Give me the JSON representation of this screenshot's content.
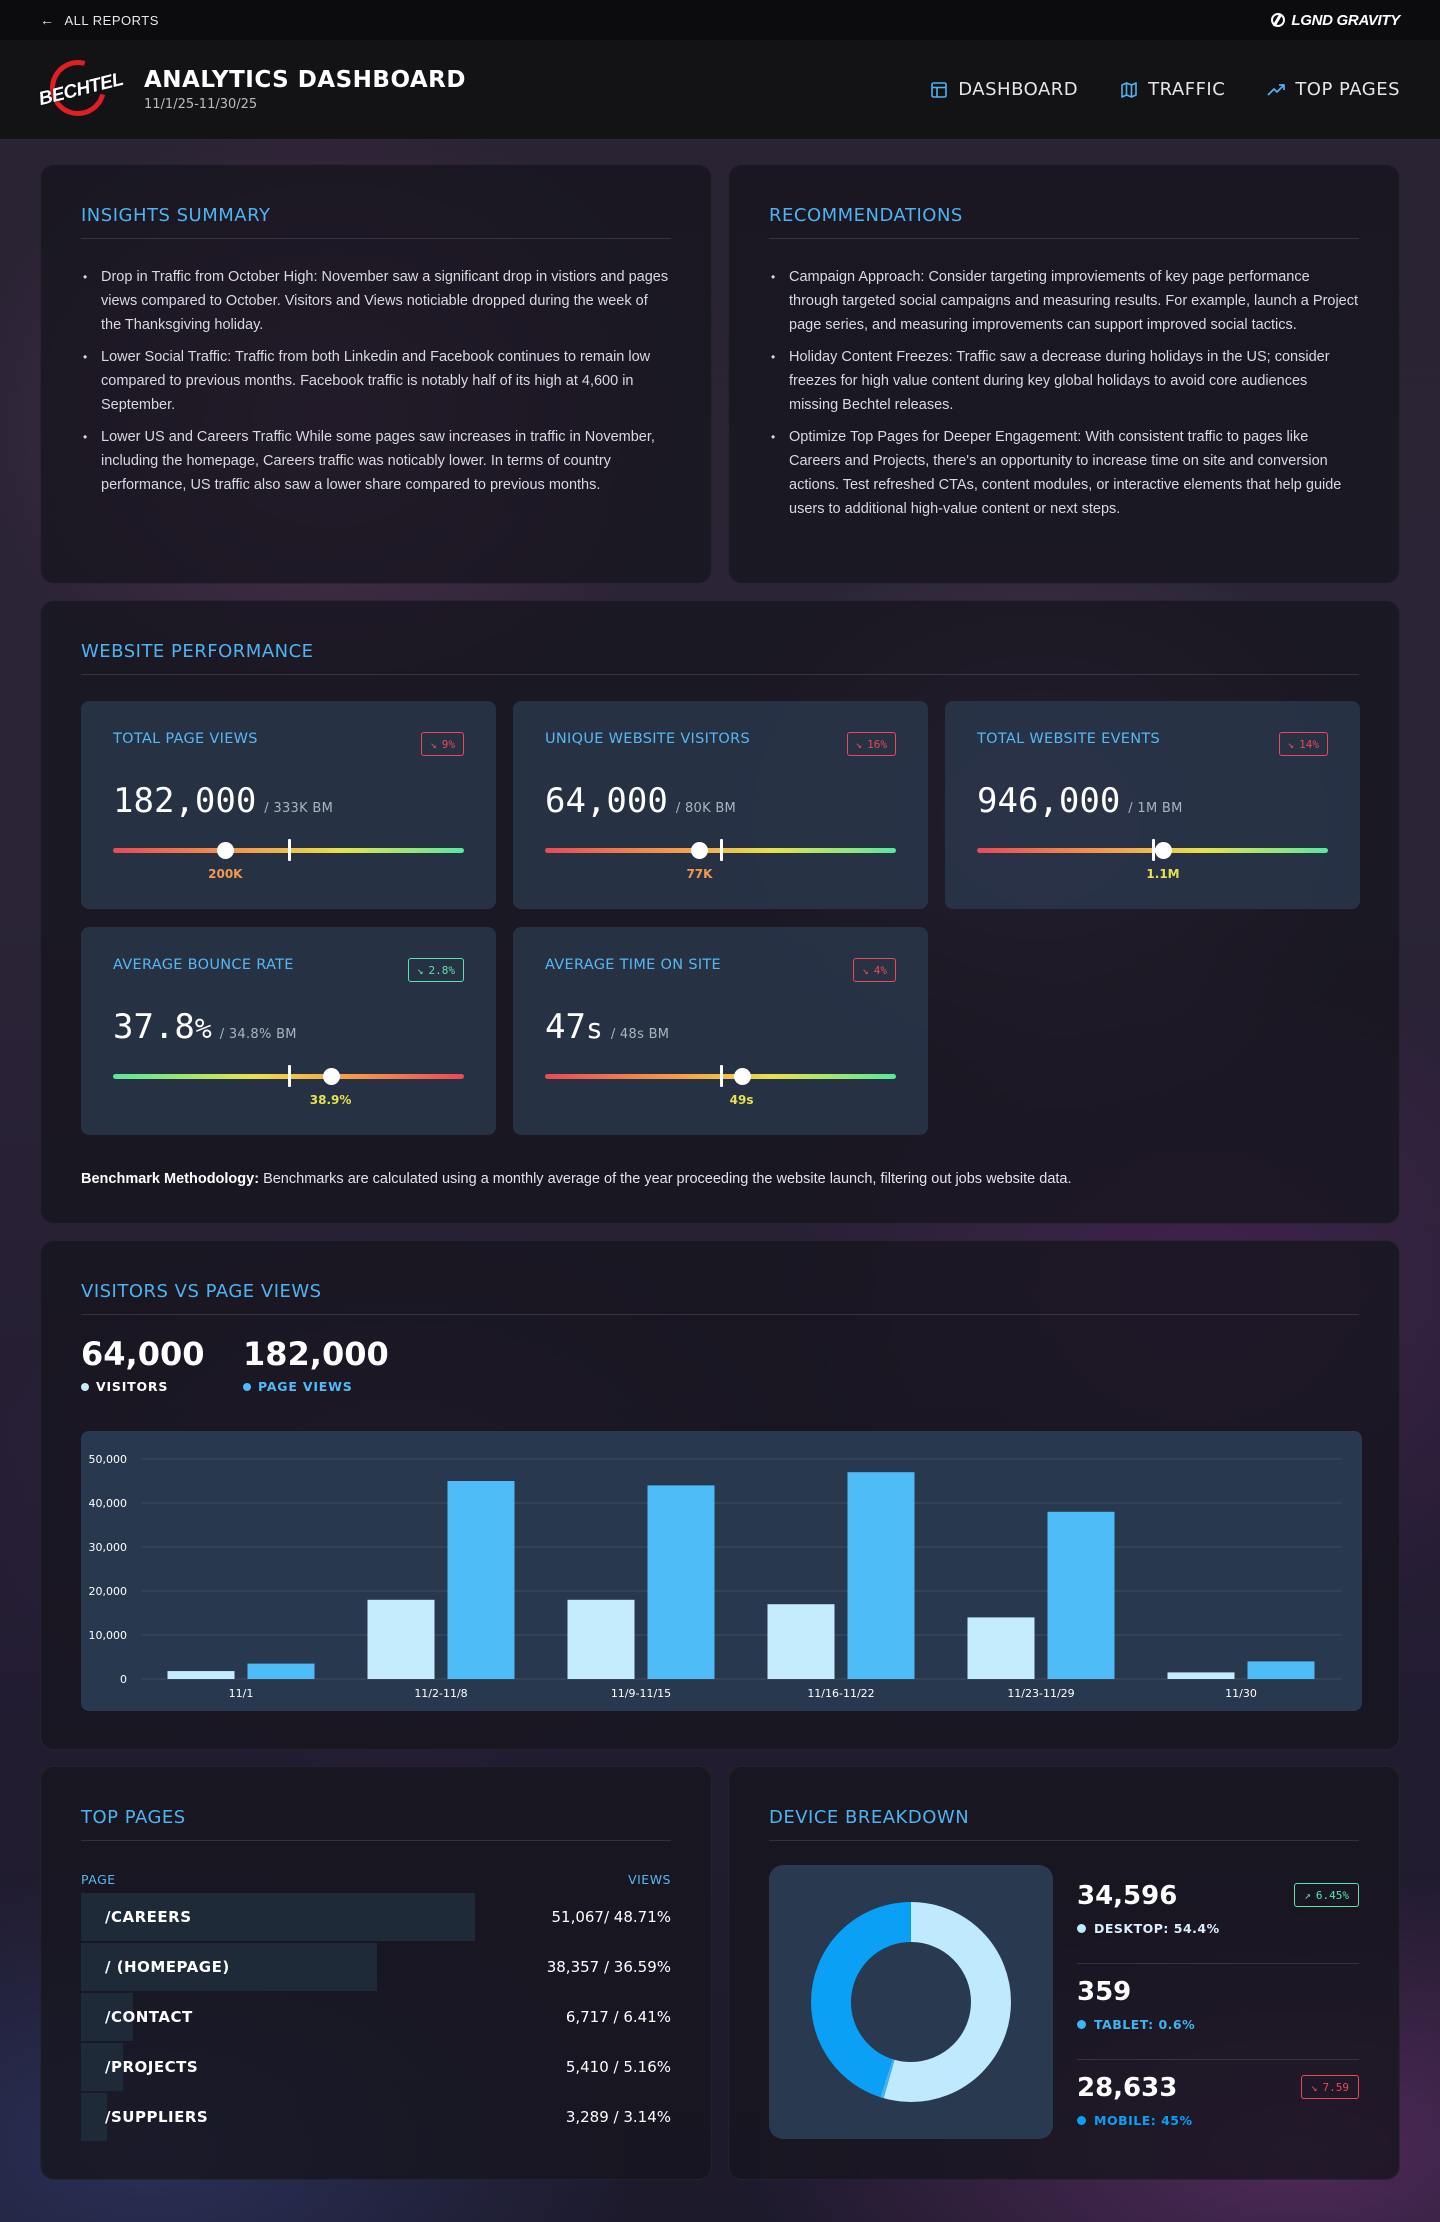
{
  "topbar": {
    "back_label": "ALL REPORTS",
    "brand": "LGND GRAVITY"
  },
  "header": {
    "logo_text": "BECHTEL",
    "title": "ANALYTICS DASHBOARD",
    "date_range": "11/1/25-11/30/25",
    "nav": [
      {
        "label": "DASHBOARD",
        "icon": "layout-icon"
      },
      {
        "label": "TRAFFIC",
        "icon": "map-icon"
      },
      {
        "label": "TOP PAGES",
        "icon": "trending-up-icon"
      }
    ]
  },
  "insights": {
    "title": "INSIGHTS SUMMARY",
    "items": [
      "Drop in Traffic from October High: November saw a significant drop in vistiors and pages views compared to October. Visitors and Views noticiable dropped during the week of the Thanksgiving holiday.",
      "Lower Social Traffic: Traffic from both Linkedin and Facebook continues to remain low compared to previous months. Facebook traffic is notably half of its high at 4,600 in September.",
      "Lower US and Careers Traffic While some pages saw increases in traffic in November, including the homepage, Careers traffic was noticably lower. In terms of country performance, US traffic also saw a lower share compared to previous months."
    ]
  },
  "recommendations": {
    "title": "RECOMMENDATIONS",
    "items": [
      "Campaign Approach: Consider targeting improviements of key page performance through targeted social campaigns and measuring results. For example, launch a Project page series, and measuring improvements can support improved social tactics.",
      "Holiday Content Freezes: Traffic saw a decrease during holidays in the US; consider freezes for high value content during key global holidays to avoid core audiences missing Bechtel releases.",
      "Optimize Top Pages for Deeper Engagement: With consistent traffic to pages like Careers and Projects, there's an opportunity to increase time on site and conversion actions. Test refreshed CTAs, content modules, or interactive elements that help guide users to additional high-value content or next steps."
    ]
  },
  "performance": {
    "title": "WEBSITE PERFORMANCE",
    "kpis": [
      {
        "label": "TOTAL PAGE VIEWS",
        "badge": "9%",
        "trend": "down",
        "value": "182,000",
        "unit": "",
        "bm": "/ 333K BM",
        "target_label": "200K",
        "target_color": "#f39a4e",
        "scale": "up",
        "target_pos": 0.32,
        "value_pos": 0.5
      },
      {
        "label": "UNIQUE WEBSITE VISITORS",
        "badge": "16%",
        "trend": "down",
        "value": "64,000",
        "unit": "",
        "bm": "/ 80K BM",
        "target_label": "77K",
        "target_color": "#f39a4e",
        "scale": "up",
        "target_pos": 0.44,
        "value_pos": 0.5
      },
      {
        "label": "TOTAL WEBSITE EVENTS",
        "badge": "14%",
        "trend": "down",
        "value": "946,000",
        "unit": "",
        "bm": "/ 1M BM",
        "target_label": "1.1M",
        "target_color": "#e6e24e",
        "scale": "up",
        "target_pos": 0.53,
        "value_pos": 0.5
      },
      {
        "label": "AVERAGE BOUNCE RATE",
        "badge": "2.8%",
        "trend": "down-good",
        "value": "37.8",
        "unit": "%",
        "bm": "/ 34.8% BM",
        "target_label": "38.9%",
        "target_color": "#e6e24e",
        "scale": "down",
        "target_pos": 0.62,
        "value_pos": 0.5
      },
      {
        "label": "AVERAGE TIME ON SITE",
        "badge": "4%",
        "trend": "down",
        "value": "47",
        "unit": "s",
        "bm": "/ 48s BM",
        "target_label": "49s",
        "target_color": "#e6e24e",
        "scale": "up",
        "target_pos": 0.56,
        "value_pos": 0.5
      }
    ],
    "methodology_label": "Benchmark Methodology:",
    "methodology_text": " Benchmarks are calculated using a monthly average of the year proceeding the website launch, filtering out jobs website data."
  },
  "visitors_chart": {
    "title": "VISITORS VS PAGE VIEWS",
    "visitors_total": "64,000",
    "visitors_label": "VISITORS",
    "pageviews_total": "182,000",
    "pageviews_label": "PAGE VIEWS",
    "visitors_color": "#c4ecfc",
    "pageviews_color": "#4ebcf7"
  },
  "chart_data": {
    "type": "bar",
    "categories": [
      "11/1",
      "11/2-11/8",
      "11/9-11/15",
      "11/16-11/22",
      "11/23-11/29",
      "11/30"
    ],
    "series": [
      {
        "name": "VISITORS",
        "values": [
          1800,
          18000,
          18000,
          17000,
          14000,
          1500
        ]
      },
      {
        "name": "PAGE VIEWS",
        "values": [
          3500,
          45000,
          44000,
          47000,
          38000,
          4000
        ]
      }
    ],
    "ylim": [
      0,
      50000
    ],
    "yticks": [
      "0",
      "10,000",
      "20,000",
      "30,000",
      "40,000",
      "50,000"
    ],
    "ytick_values": [
      0,
      10000,
      20000,
      30000,
      40000,
      50000
    ],
    "grid": true
  },
  "top_pages": {
    "title": "TOP PAGES",
    "col_page": "PAGE",
    "col_views": "VIEWS",
    "rows": [
      {
        "page": "/CAREERS",
        "views": "51,067/ 48.71%",
        "share": 0.4871
      },
      {
        "page": "/ (HOMEPAGE)",
        "views": "38,357 / 36.59%",
        "share": 0.3659
      },
      {
        "page": "/CONTACT",
        "views": "6,717 / 6.41%",
        "share": 0.0641
      },
      {
        "page": "/PROJECTS",
        "views": "5,410 / 5.16%",
        "share": 0.0516
      },
      {
        "page": "/SUPPLIERS",
        "views": "3,289 / 3.14%",
        "share": 0.0314
      }
    ]
  },
  "devices": {
    "title": "DEVICE BREAKDOWN",
    "items": [
      {
        "value": "34,596",
        "label": "DESKTOP: 54.4%",
        "share": 0.544,
        "color": "#bfe9fd",
        "badge": "6.45%",
        "trend": "up"
      },
      {
        "value": "359",
        "label": "TABLET: 0.6%",
        "share": 0.006,
        "color": "#3fb4f4",
        "badge": "",
        "trend": ""
      },
      {
        "value": "28,633",
        "label": "MOBILE: 45%",
        "share": 0.45,
        "color": "#0aa0f6",
        "badge": "7.59",
        "trend": "down"
      }
    ]
  }
}
